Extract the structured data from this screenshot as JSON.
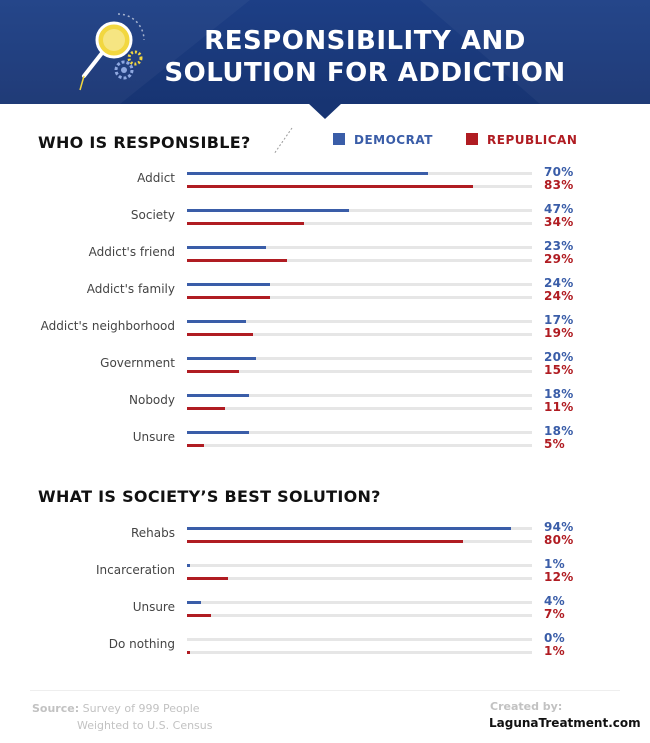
{
  "header": {
    "title_line1": "RESPONSIBILITY AND",
    "title_line2": "SOLUTION FOR ADDICTION",
    "logo_icon": "magnifier-gears-icon"
  },
  "legend": {
    "democrat": "DEMOCRAT",
    "republican": "REPUBLICAN",
    "democrat_color": "#3a5da8",
    "republican_color": "#b01c22"
  },
  "chart_data": [
    {
      "type": "bar",
      "orientation": "horizontal",
      "title": "WHO IS RESPONSIBLE?",
      "categories": [
        "Addict",
        "Society",
        "Addict's friend",
        "Addict's family",
        "Addict's neighborhood",
        "Government",
        "Nobody",
        "Unsure"
      ],
      "series": [
        {
          "name": "DEMOCRAT",
          "values": [
            70,
            47,
            23,
            24,
            17,
            20,
            18,
            18
          ],
          "labels": [
            "70%",
            "47%",
            "23%",
            "24%",
            "17%",
            "20%",
            "18%",
            "18%"
          ],
          "color": "#3a5da8"
        },
        {
          "name": "REPUBLICAN",
          "values": [
            83,
            34,
            29,
            24,
            19,
            15,
            11,
            5
          ],
          "labels": [
            "83%",
            "34%",
            "29%",
            "24%",
            "19%",
            "15%",
            "11%",
            "5%"
          ],
          "color": "#b01c22"
        }
      ],
      "xlim": [
        0,
        100
      ],
      "legend": "top-right"
    },
    {
      "type": "bar",
      "orientation": "horizontal",
      "title": "WHAT IS SOCIETY’S  BEST SOLUTION?",
      "categories": [
        "Rehabs",
        "Incarceration",
        "Unsure",
        "Do nothing"
      ],
      "series": [
        {
          "name": "DEMOCRAT",
          "values": [
            94,
            1,
            4,
            0
          ],
          "labels": [
            "94%",
            "1%",
            "4%",
            "0%"
          ],
          "color": "#3a5da8"
        },
        {
          "name": "REPUBLICAN",
          "values": [
            80,
            12,
            7,
            1
          ],
          "labels": [
            "80%",
            "12%",
            "7%",
            "1%"
          ],
          "color": "#b01c22"
        }
      ],
      "xlim": [
        0,
        100
      ]
    }
  ],
  "footer": {
    "source_label": "Source:",
    "source_line1": "Survey of 999 People",
    "source_line2": "Weighted to U.S. Census",
    "created_by": "Created by:",
    "site": "LagunaTreatment.com"
  }
}
